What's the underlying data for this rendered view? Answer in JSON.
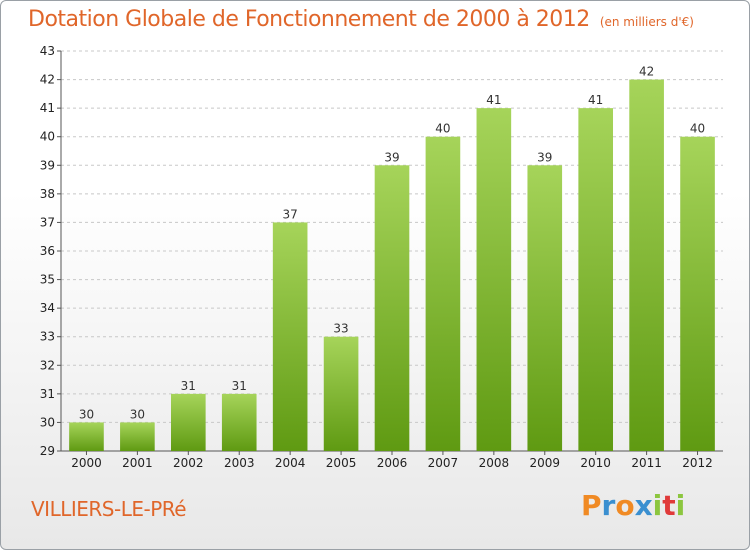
{
  "title": "Dotation Globale de Fonctionnement de 2000 à 2012",
  "subtitle": "(en milliers d'€)",
  "location": "VILLIERS-LE-PRé",
  "logo": {
    "text": "Proxiti",
    "letters": [
      "P",
      "r",
      "o",
      "x",
      "i",
      "t",
      "i"
    ],
    "letter_colors": [
      "#f08a24",
      "#3a8fd0",
      "#f08a24",
      "#3a8fd0",
      "#8cc63f",
      "#e03a3a",
      "#8cc63f"
    ]
  },
  "colors": {
    "bar_light": "#a6d45a",
    "bar_dark": "#5f9a12",
    "title": "#e0662a",
    "grid": "#c8c8c8"
  },
  "chart_data": {
    "type": "bar",
    "title": "Dotation Globale de Fonctionnement de 2000 à 2012",
    "subtitle": "(en milliers d'€)",
    "categories": [
      "2000",
      "2001",
      "2002",
      "2003",
      "2004",
      "2005",
      "2006",
      "2007",
      "2008",
      "2009",
      "2010",
      "2011",
      "2012"
    ],
    "values": [
      30,
      30,
      31,
      31,
      37,
      33,
      39,
      40,
      41,
      39,
      41,
      42,
      40
    ],
    "ylim": [
      29,
      43
    ],
    "yticks": [
      29,
      30,
      31,
      32,
      33,
      34,
      35,
      36,
      37,
      38,
      39,
      40,
      41,
      42,
      43
    ],
    "grid": "horizontal dashed",
    "xlabel": "",
    "ylabel": ""
  }
}
